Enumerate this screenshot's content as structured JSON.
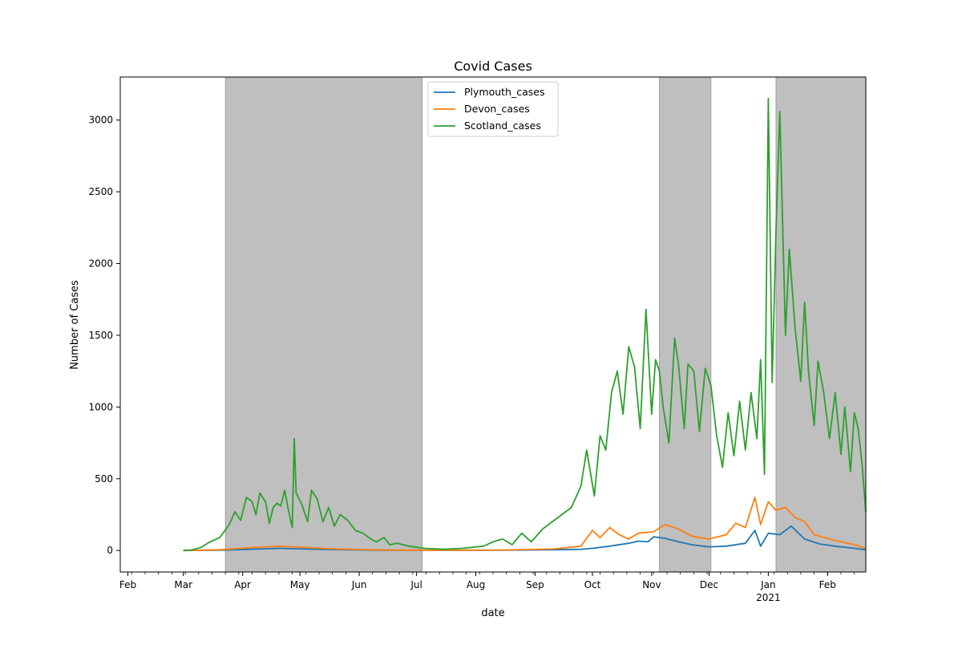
{
  "chart_data": {
    "type": "line",
    "title": "Covid Cases",
    "xlabel": "date",
    "ylabel": "Number of Cases",
    "xlim": [
      "2020-01-28",
      "2021-02-21"
    ],
    "ylim": [
      -150,
      3300
    ],
    "x_ticks": [
      {
        "date": "2020-02-01",
        "label": "Feb"
      },
      {
        "date": "2020-03-01",
        "label": "Mar"
      },
      {
        "date": "2020-04-01",
        "label": "Apr"
      },
      {
        "date": "2020-05-01",
        "label": "May"
      },
      {
        "date": "2020-06-01",
        "label": "Jun"
      },
      {
        "date": "2020-07-01",
        "label": "Jul"
      },
      {
        "date": "2020-08-01",
        "label": "Aug"
      },
      {
        "date": "2020-09-01",
        "label": "Sep"
      },
      {
        "date": "2020-10-01",
        "label": "Oct"
      },
      {
        "date": "2020-11-01",
        "label": "Nov"
      },
      {
        "date": "2020-12-01",
        "label": "Dec"
      },
      {
        "date": "2021-01-01",
        "label": "Jan"
      },
      {
        "date": "2021-02-01",
        "label": "Feb"
      }
    ],
    "year_label": {
      "date": "2021-01-01",
      "label": "2021"
    },
    "y_ticks": [
      0,
      500,
      1000,
      1500,
      2000,
      2500,
      3000
    ],
    "grid": false,
    "legend_position": "top-center",
    "shaded_periods": [
      {
        "start": "2020-03-23",
        "end": "2020-07-04"
      },
      {
        "start": "2020-11-05",
        "end": "2020-12-02"
      },
      {
        "start": "2021-01-05",
        "end": "2021-02-21"
      }
    ],
    "series": [
      {
        "name": "Plymouth_cases",
        "color": "#1f77b4",
        "points": [
          [
            "2020-03-01",
            0
          ],
          [
            "2020-03-20",
            2
          ],
          [
            "2020-04-05",
            8
          ],
          [
            "2020-04-20",
            15
          ],
          [
            "2020-05-05",
            10
          ],
          [
            "2020-05-20",
            6
          ],
          [
            "2020-06-15",
            2
          ],
          [
            "2020-07-15",
            1
          ],
          [
            "2020-08-15",
            2
          ],
          [
            "2020-09-10",
            5
          ],
          [
            "2020-09-25",
            8
          ],
          [
            "2020-10-01",
            15
          ],
          [
            "2020-10-10",
            30
          ],
          [
            "2020-10-20",
            50
          ],
          [
            "2020-10-25",
            65
          ],
          [
            "2020-10-30",
            60
          ],
          [
            "2020-11-02",
            95
          ],
          [
            "2020-11-08",
            85
          ],
          [
            "2020-11-15",
            60
          ],
          [
            "2020-11-22",
            40
          ],
          [
            "2020-12-01",
            25
          ],
          [
            "2020-12-10",
            30
          ],
          [
            "2020-12-20",
            50
          ],
          [
            "2020-12-25",
            140
          ],
          [
            "2020-12-28",
            30
          ],
          [
            "2021-01-01",
            120
          ],
          [
            "2021-01-07",
            110
          ],
          [
            "2021-01-13",
            170
          ],
          [
            "2021-01-20",
            80
          ],
          [
            "2021-01-28",
            45
          ],
          [
            "2021-02-05",
            30
          ],
          [
            "2021-02-15",
            15
          ],
          [
            "2021-02-21",
            5
          ]
        ]
      },
      {
        "name": "Devon_cases",
        "color": "#ff7f0e",
        "points": [
          [
            "2020-03-01",
            0
          ],
          [
            "2020-03-20",
            5
          ],
          [
            "2020-04-05",
            20
          ],
          [
            "2020-04-20",
            30
          ],
          [
            "2020-05-05",
            20
          ],
          [
            "2020-05-20",
            10
          ],
          [
            "2020-06-15",
            3
          ],
          [
            "2020-07-15",
            2
          ],
          [
            "2020-08-15",
            3
          ],
          [
            "2020-09-10",
            10
          ],
          [
            "2020-09-25",
            30
          ],
          [
            "2020-10-01",
            140
          ],
          [
            "2020-10-05",
            90
          ],
          [
            "2020-10-10",
            160
          ],
          [
            "2020-10-15",
            110
          ],
          [
            "2020-10-20",
            80
          ],
          [
            "2020-10-25",
            120
          ],
          [
            "2020-11-02",
            130
          ],
          [
            "2020-11-08",
            180
          ],
          [
            "2020-11-15",
            150
          ],
          [
            "2020-11-22",
            100
          ],
          [
            "2020-12-01",
            80
          ],
          [
            "2020-12-10",
            110
          ],
          [
            "2020-12-15",
            190
          ],
          [
            "2020-12-20",
            160
          ],
          [
            "2020-12-25",
            370
          ],
          [
            "2020-12-28",
            180
          ],
          [
            "2021-01-01",
            340
          ],
          [
            "2021-01-05",
            280
          ],
          [
            "2021-01-10",
            300
          ],
          [
            "2021-01-15",
            230
          ],
          [
            "2021-01-20",
            200
          ],
          [
            "2021-01-25",
            110
          ],
          [
            "2021-02-05",
            70
          ],
          [
            "2021-02-15",
            40
          ],
          [
            "2021-02-21",
            15
          ]
        ]
      },
      {
        "name": "Scotland_cases",
        "color": "#2ca02c",
        "points": [
          [
            "2020-03-01",
            0
          ],
          [
            "2020-03-05",
            3
          ],
          [
            "2020-03-10",
            20
          ],
          [
            "2020-03-15",
            60
          ],
          [
            "2020-03-20",
            90
          ],
          [
            "2020-03-25",
            180
          ],
          [
            "2020-03-28",
            270
          ],
          [
            "2020-03-31",
            210
          ],
          [
            "2020-04-03",
            370
          ],
          [
            "2020-04-06",
            340
          ],
          [
            "2020-04-08",
            250
          ],
          [
            "2020-04-10",
            400
          ],
          [
            "2020-04-13",
            340
          ],
          [
            "2020-04-15",
            190
          ],
          [
            "2020-04-17",
            300
          ],
          [
            "2020-04-19",
            330
          ],
          [
            "2020-04-21",
            310
          ],
          [
            "2020-04-23",
            420
          ],
          [
            "2020-04-25",
            280
          ],
          [
            "2020-04-27",
            160
          ],
          [
            "2020-04-28",
            780
          ],
          [
            "2020-04-29",
            400
          ],
          [
            "2020-05-02",
            320
          ],
          [
            "2020-05-05",
            200
          ],
          [
            "2020-05-07",
            420
          ],
          [
            "2020-05-10",
            360
          ],
          [
            "2020-05-13",
            200
          ],
          [
            "2020-05-16",
            300
          ],
          [
            "2020-05-19",
            170
          ],
          [
            "2020-05-22",
            250
          ],
          [
            "2020-05-26",
            210
          ],
          [
            "2020-05-30",
            140
          ],
          [
            "2020-06-03",
            120
          ],
          [
            "2020-06-07",
            80
          ],
          [
            "2020-06-10",
            60
          ],
          [
            "2020-06-14",
            90
          ],
          [
            "2020-06-17",
            40
          ],
          [
            "2020-06-21",
            50
          ],
          [
            "2020-06-27",
            30
          ],
          [
            "2020-07-05",
            15
          ],
          [
            "2020-07-15",
            8
          ],
          [
            "2020-07-25",
            15
          ],
          [
            "2020-08-05",
            30
          ],
          [
            "2020-08-10",
            60
          ],
          [
            "2020-08-15",
            80
          ],
          [
            "2020-08-20",
            40
          ],
          [
            "2020-08-25",
            120
          ],
          [
            "2020-08-30",
            60
          ],
          [
            "2020-09-05",
            150
          ],
          [
            "2020-09-10",
            200
          ],
          [
            "2020-09-15",
            250
          ],
          [
            "2020-09-20",
            300
          ],
          [
            "2020-09-25",
            450
          ],
          [
            "2020-09-28",
            700
          ],
          [
            "2020-10-02",
            380
          ],
          [
            "2020-10-05",
            800
          ],
          [
            "2020-10-08",
            700
          ],
          [
            "2020-10-11",
            1100
          ],
          [
            "2020-10-14",
            1250
          ],
          [
            "2020-10-17",
            950
          ],
          [
            "2020-10-20",
            1420
          ],
          [
            "2020-10-23",
            1280
          ],
          [
            "2020-10-26",
            850
          ],
          [
            "2020-10-29",
            1680
          ],
          [
            "2020-11-01",
            950
          ],
          [
            "2020-11-03",
            1330
          ],
          [
            "2020-11-05",
            1250
          ],
          [
            "2020-11-07",
            1000
          ],
          [
            "2020-11-10",
            750
          ],
          [
            "2020-11-13",
            1480
          ],
          [
            "2020-11-15",
            1300
          ],
          [
            "2020-11-18",
            850
          ],
          [
            "2020-11-20",
            1300
          ],
          [
            "2020-11-23",
            1250
          ],
          [
            "2020-11-26",
            830
          ],
          [
            "2020-11-29",
            1270
          ],
          [
            "2020-12-02",
            1150
          ],
          [
            "2020-12-05",
            800
          ],
          [
            "2020-12-08",
            580
          ],
          [
            "2020-12-11",
            960
          ],
          [
            "2020-12-14",
            660
          ],
          [
            "2020-12-17",
            1040
          ],
          [
            "2020-12-20",
            700
          ],
          [
            "2020-12-23",
            1100
          ],
          [
            "2020-12-26",
            780
          ],
          [
            "2020-12-28",
            1330
          ],
          [
            "2020-12-30",
            530
          ],
          [
            "2021-01-01",
            3150
          ],
          [
            "2021-01-03",
            1170
          ],
          [
            "2021-01-05",
            2220
          ],
          [
            "2021-01-07",
            3060
          ],
          [
            "2021-01-10",
            1500
          ],
          [
            "2021-01-12",
            2100
          ],
          [
            "2021-01-15",
            1550
          ],
          [
            "2021-01-18",
            1180
          ],
          [
            "2021-01-20",
            1730
          ],
          [
            "2021-01-22",
            1250
          ],
          [
            "2021-01-25",
            870
          ],
          [
            "2021-01-27",
            1320
          ],
          [
            "2021-01-30",
            1100
          ],
          [
            "2021-02-02",
            780
          ],
          [
            "2021-02-05",
            1100
          ],
          [
            "2021-02-08",
            670
          ],
          [
            "2021-02-10",
            1000
          ],
          [
            "2021-02-13",
            550
          ],
          [
            "2021-02-15",
            960
          ],
          [
            "2021-02-17",
            850
          ],
          [
            "2021-02-19",
            610
          ],
          [
            "2021-02-21",
            270
          ]
        ]
      }
    ]
  }
}
